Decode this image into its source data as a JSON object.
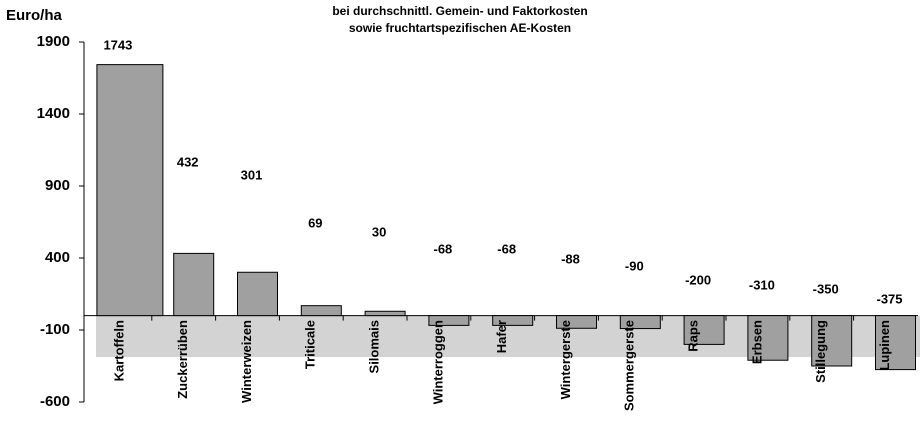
{
  "chart_data": {
    "type": "bar",
    "title": [
      "bei durchschnittl. Gemein- und Faktorkosten",
      "sowie fruchtartspezifischen AE-Kosten"
    ],
    "y_label": "Euro/ha",
    "categories": [
      "Kartoffeln",
      "Zuckerrüben",
      "Winterweizen",
      "Triticale",
      "Silomais",
      "Winterroggen",
      "Hafer",
      "Wintergerste",
      "Sommergerste",
      "Raps",
      "Erbsen",
      "Stillegung",
      "Lupinen"
    ],
    "values": [
      1743,
      432,
      301,
      69,
      30,
      -68,
      -68,
      -88,
      -90,
      -200,
      -310,
      -350,
      -375
    ],
    "color": "#a0a0a0",
    "ylim": [
      -600,
      1900
    ],
    "yticks": [
      -600,
      -100,
      400,
      900,
      1400,
      1900
    ],
    "grid": false
  }
}
